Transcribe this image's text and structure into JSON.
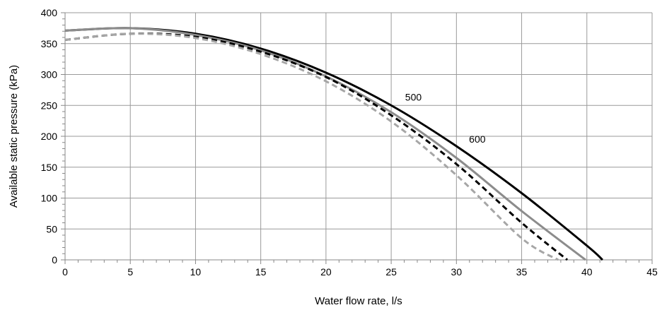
{
  "chart_data": {
    "type": "line",
    "xlabel": "Water flow rate, l/s",
    "ylabel": "Available static pressure (kPa)",
    "xlim": [
      0,
      45
    ],
    "ylim": [
      0,
      400
    ],
    "xticks": [
      0,
      5,
      10,
      15,
      20,
      25,
      30,
      35,
      40,
      45
    ],
    "yticks": [
      0,
      50,
      100,
      150,
      200,
      250,
      300,
      350,
      400
    ],
    "grid": true,
    "series": [
      {
        "color": "#000000",
        "style": "solid",
        "x": [
          0,
          5,
          10,
          15,
          20,
          25,
          30,
          35,
          40,
          41.2
        ],
        "y": [
          371,
          375,
          366,
          342,
          303,
          250,
          184,
          108,
          23,
          0
        ]
      },
      {
        "color": "#8c8c8c",
        "style": "solid",
        "x": [
          0,
          5,
          10,
          15,
          20,
          25,
          30,
          35,
          39.9
        ],
        "y": [
          371,
          375,
          364,
          339,
          297,
          239,
          165,
          79,
          0
        ]
      },
      {
        "color": "#000000",
        "style": "dashed",
        "x": [
          0,
          5,
          10,
          15,
          20,
          25,
          30,
          35,
          38.5
        ],
        "y": [
          356,
          366,
          361,
          337,
          296,
          234,
          155,
          60,
          0
        ]
      },
      {
        "color": "#a6a6a6",
        "style": "dashed",
        "x": [
          0,
          5,
          10,
          15,
          20,
          25,
          30,
          35,
          37.8
        ],
        "y": [
          356,
          366,
          359,
          333,
          289,
          224,
          137,
          35,
          0
        ]
      }
    ],
    "annotations": [
      {
        "text": "500",
        "x": 26.7,
        "y": 258
      },
      {
        "text": "600",
        "x": 31.6,
        "y": 190
      }
    ]
  }
}
